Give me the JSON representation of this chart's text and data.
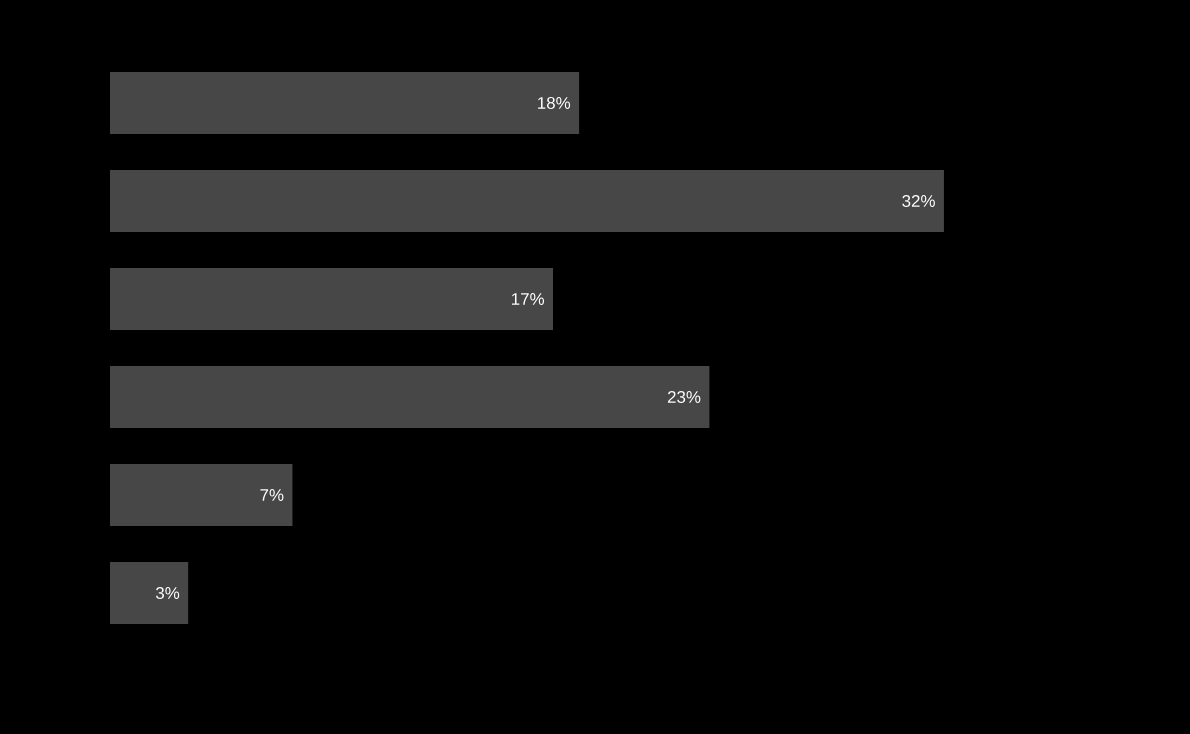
{
  "chart_data": {
    "type": "bar",
    "orientation": "horizontal",
    "categories": [
      null,
      null,
      null,
      null,
      null,
      null
    ],
    "values": [
      18,
      32,
      17,
      23,
      7,
      3
    ],
    "value_labels": [
      "18%",
      "32%",
      "17%",
      "23%",
      "7%",
      "3%"
    ],
    "color": "#474747"
  }
}
